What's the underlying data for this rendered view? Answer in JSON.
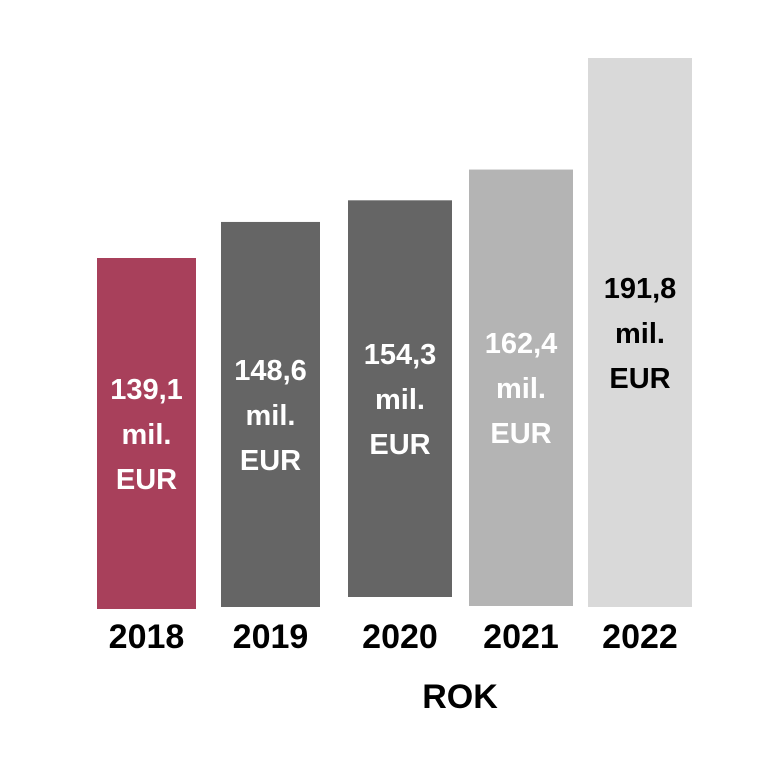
{
  "chart_data": {
    "type": "bar",
    "categories": [
      "2018",
      "2019",
      "2020",
      "2021",
      "2022"
    ],
    "values": [
      139.1,
      148.6,
      154.3,
      162.4,
      191.8
    ],
    "data_labels": [
      [
        "139,1",
        "mil.",
        "EUR"
      ],
      [
        "148,6",
        "mil.",
        "EUR"
      ],
      [
        "154,3",
        "mil.",
        "EUR"
      ],
      [
        "162,4",
        "mil.",
        "EUR"
      ],
      [
        "191,8",
        "mil.",
        "EUR"
      ]
    ],
    "bar_colors": [
      "#a8405b",
      "#656565",
      "#656565",
      "#b4b4b4",
      "#d9d9d9"
    ],
    "label_colors": [
      "#ffffff",
      "#ffffff",
      "#ffffff",
      "#ffffff",
      "#000000"
    ],
    "xlabel": "ROK",
    "ylabel": "",
    "grid": false
  }
}
